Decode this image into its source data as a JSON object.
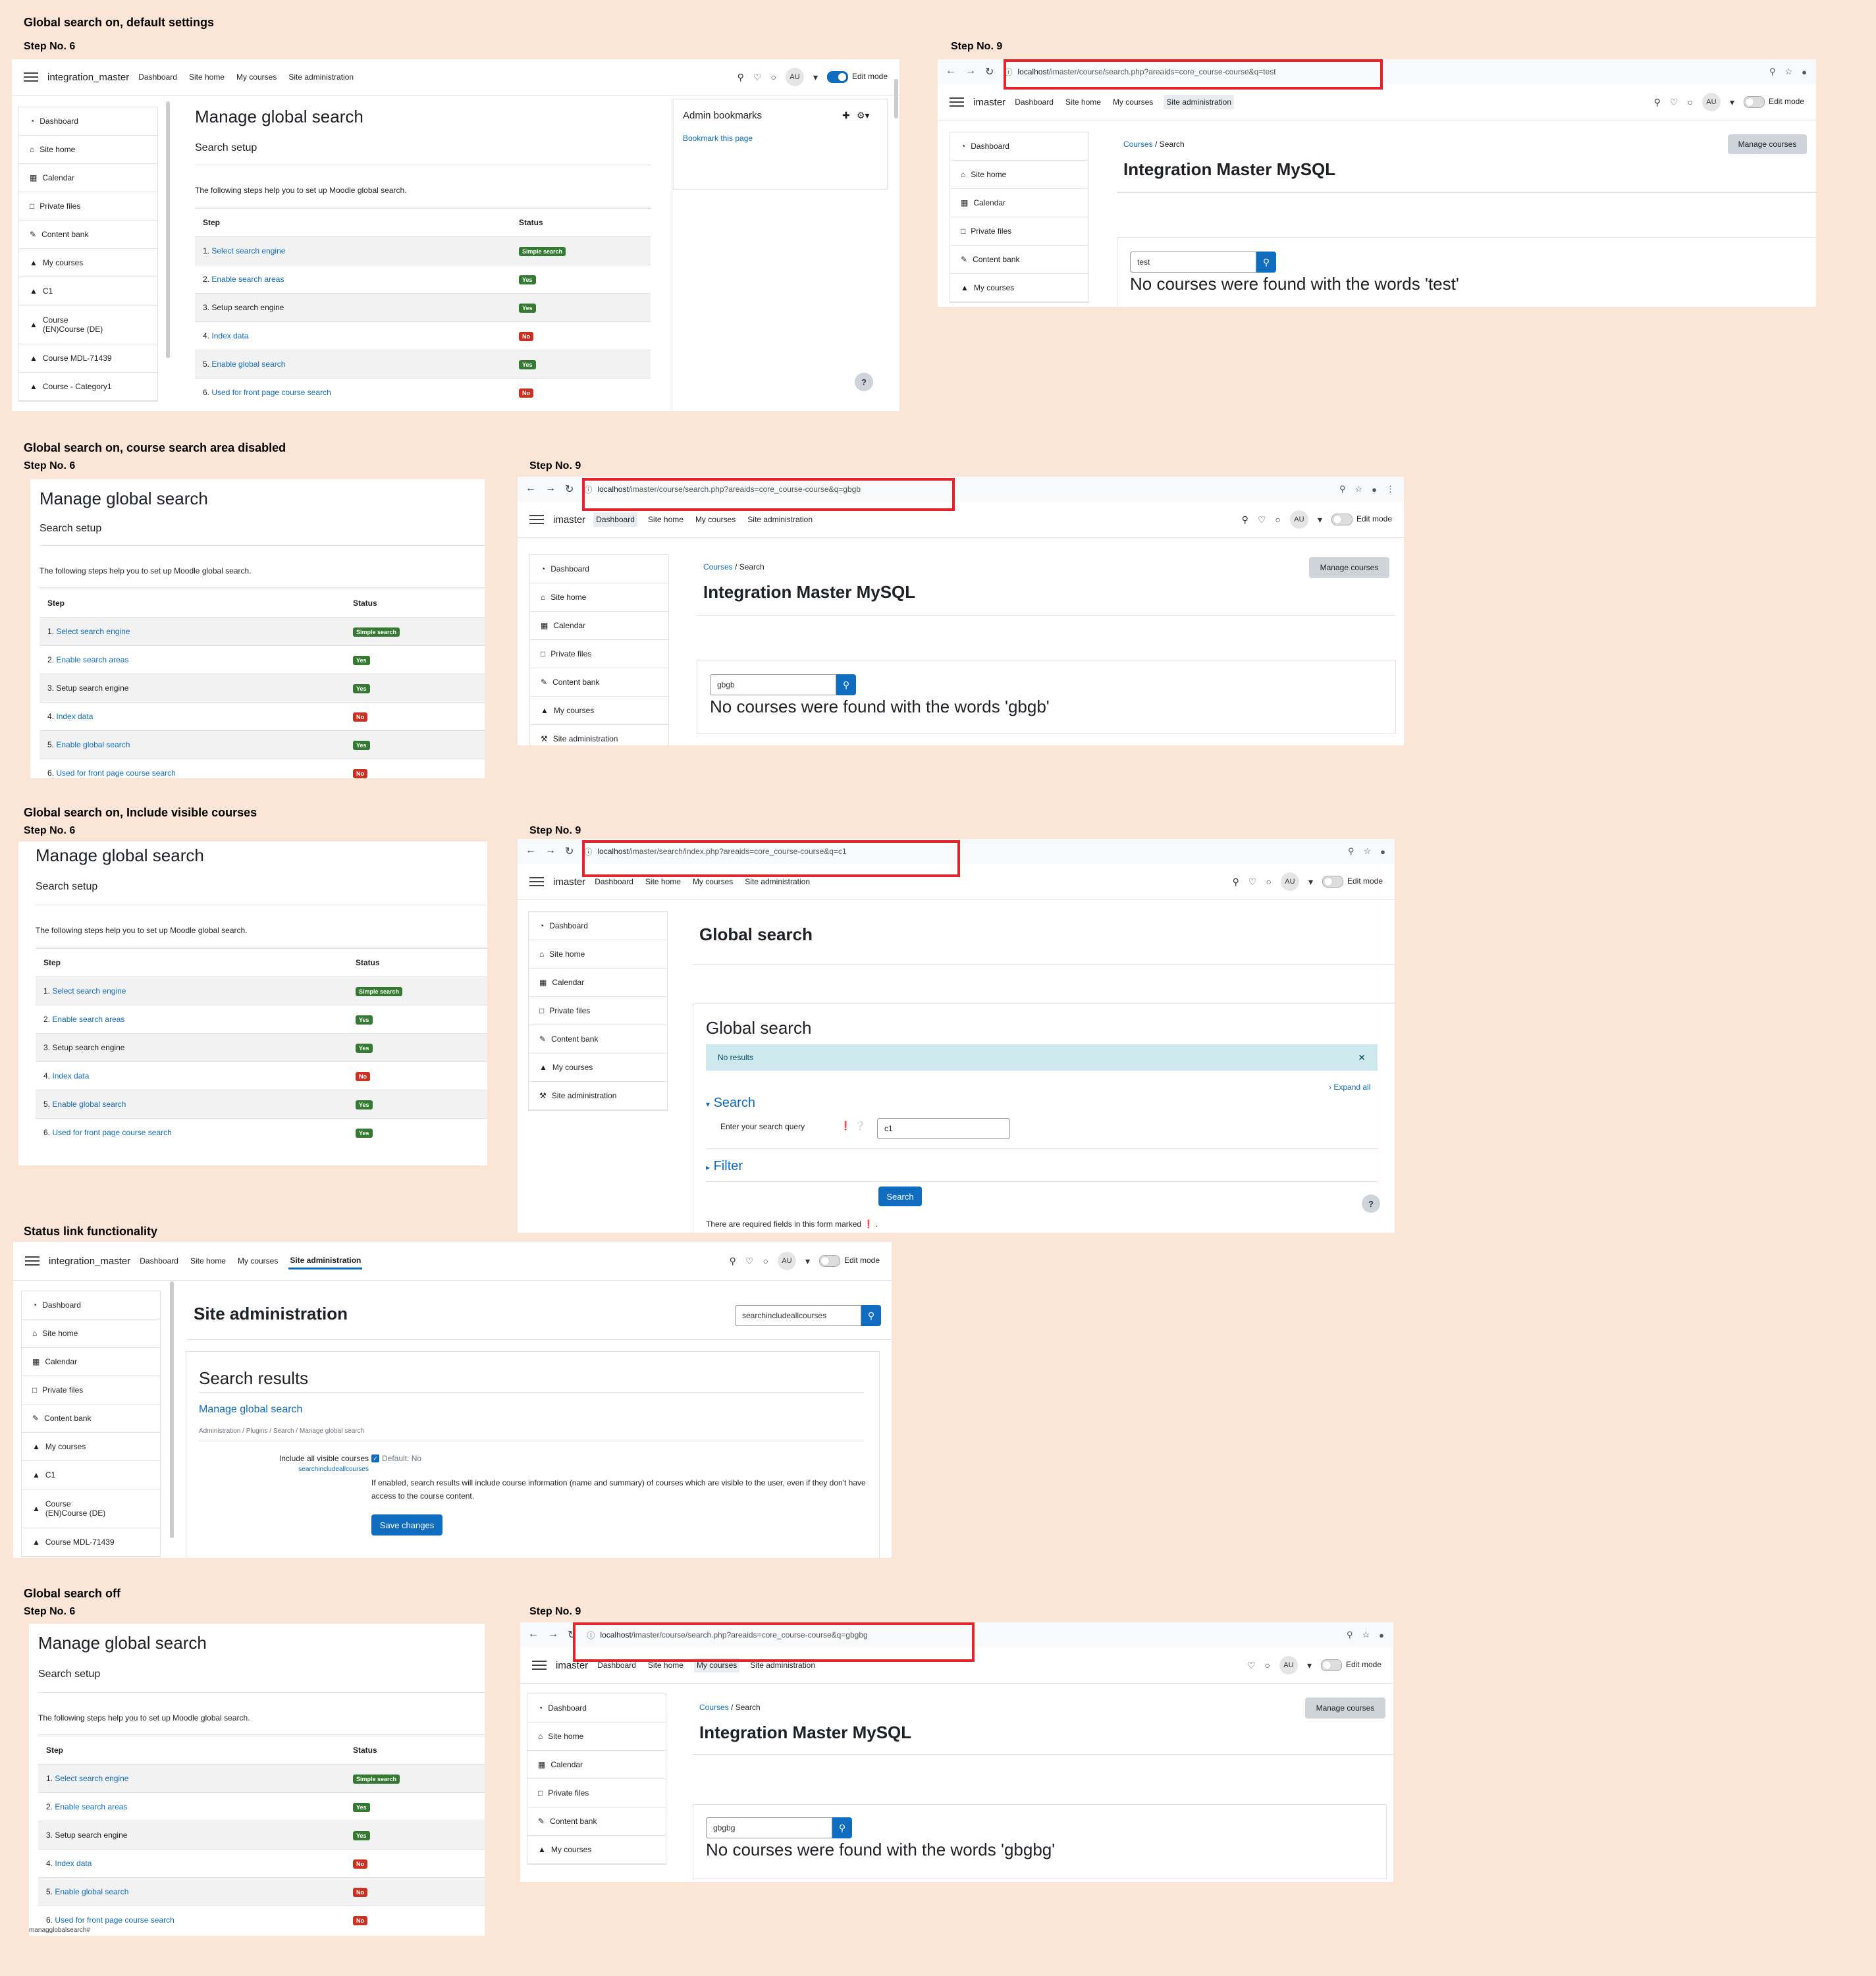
{
  "sections": {
    "s1": "Global search on, default settings",
    "s2": "Global search on, course search area disabled",
    "s3": "Global search on, Include visible courses",
    "s4": "Status link functionality",
    "s5": "Global search off"
  },
  "steps": {
    "step6": "Step No. 6",
    "step9": "Step No. 9"
  },
  "nav": {
    "site_long": "integration_master",
    "site_short": "imaster",
    "dashboard": "Dashboard",
    "site_home": "Site home",
    "my_courses": "My courses",
    "site_admin": "Site administration",
    "avatar": "AU",
    "edit_mode": "Edit mode"
  },
  "sidebar": {
    "dashboard": "Dashboard",
    "site_home": "Site home",
    "calendar": "Calendar",
    "private_files": "Private files",
    "content_bank": "Content bank",
    "my_courses": "My courses",
    "c1": "C1",
    "course_en": "Course (EN)Course (DE)",
    "course_mdl": "Course MDL-71439",
    "course_cat": "Course - Category1",
    "site_admin": "Site administration"
  },
  "mgs": {
    "title": "Manage global search",
    "subtitle": "Search setup",
    "intro": "The following steps help you to set up Moodle global search.",
    "col_step": "Step",
    "col_status": "Status",
    "steps": [
      {
        "num": "1.",
        "label": "Select search engine"
      },
      {
        "num": "2.",
        "label": "Enable search areas"
      },
      {
        "num": "3.",
        "label": "Setup search engine"
      },
      {
        "num": "4.",
        "label": "Index data"
      },
      {
        "num": "5.",
        "label": "Enable global search"
      },
      {
        "num": "6.",
        "label": "Used for front page course search"
      }
    ],
    "status_simple": "Simple search",
    "yes": "Yes",
    "no": "No",
    "admin_bookmarks": "Admin bookmarks",
    "bookmark_page": "Bookmark this page"
  },
  "browser": {
    "host": "localhost",
    "url1": "/imaster/course/search.php?areaids=core_course-course&q=test",
    "url2": "/imaster/course/search.php?areaids=core_course-course&q=gbgb",
    "url3": "/imaster/search/index.php?areaids=core_course-course&q=c1",
    "url5": "/imaster/course/search.php?areaids=core_course-course&q=gbgbg"
  },
  "course_search": {
    "crumb_courses": "Courses",
    "crumb_search": "Search",
    "manage_courses": "Manage courses",
    "title": "Integration Master MySQL",
    "q1": "test",
    "q2": "gbgb",
    "q5": "gbgbg",
    "res1": "No courses were found with the words 'test'",
    "res2": "No courses were found with the words 'gbgb'",
    "res5": "No courses were found with the words 'gbgbg'"
  },
  "global_search": {
    "title": "Global search",
    "card_title": "Global search",
    "no_results": "No results",
    "expand_all": "Expand all",
    "search_section": "Search",
    "query_label": "Enter your search query",
    "query_value": "c1",
    "filter": "Filter",
    "search_button": "Search",
    "required_note": "There are required fields in this form marked"
  },
  "site_admin": {
    "title": "Site administration",
    "search_value": "searchincludeallcourses",
    "results_title": "Search results",
    "link": "Manage global search",
    "crumbs": "Administration / Plugins / Search / Manage global search",
    "setting_label": "Include all visible courses",
    "setting_key": "searchincludeallcourses",
    "default": "Default: No",
    "description": "If enabled, search results will include course information (name and summary) of courses which are visible to the user, even if they don't have access to the course content.",
    "save": "Save changes"
  },
  "footer_text": "managglobalsearch#"
}
